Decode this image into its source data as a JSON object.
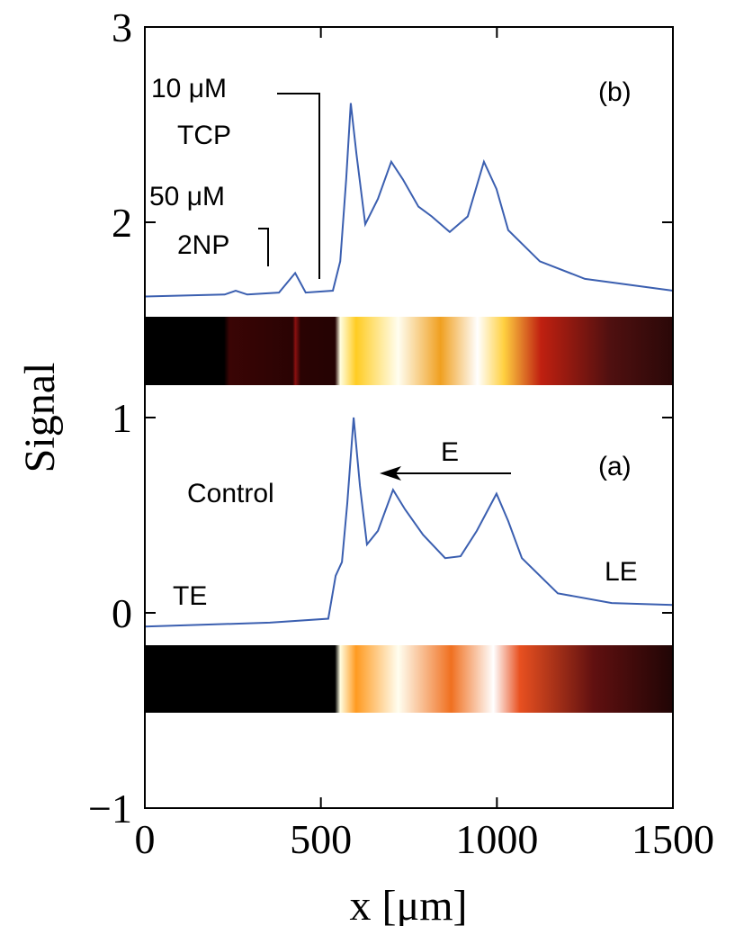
{
  "chart_data": {
    "type": "line",
    "x_label": "x [μm]",
    "y_label": "Signal",
    "xlim": [
      0,
      1500
    ],
    "ylim": [
      -1,
      3
    ],
    "xticks": [
      0,
      500,
      1000,
      1500
    ],
    "yticks": [
      {
        "value": -1,
        "label": "−1"
      },
      0,
      1,
      2,
      3
    ],
    "annotations": {
      "b_conc1": "10 μM",
      "b_name1": "TCP",
      "b_conc2": "50 μM",
      "b_name2": "2NP",
      "b_panel": "(b)",
      "a_panel": "(a)",
      "a_field": "E",
      "a_label": "Control",
      "a_te": "TE",
      "a_le": "LE"
    },
    "series": [
      {
        "name": "(b)",
        "color": "#3b5fb0",
        "x": [
          0,
          227,
          258,
          291,
          381,
          427,
          457,
          534,
          555,
          572,
          585,
          601,
          626,
          662,
          700,
          733,
          777,
          815,
          866,
          917,
          963,
          999,
          1032,
          1122,
          1250,
          1500
        ],
        "values": [
          1.62,
          1.63,
          1.65,
          1.63,
          1.64,
          1.74,
          1.64,
          1.65,
          1.8,
          2.22,
          2.61,
          2.35,
          1.99,
          2.12,
          2.31,
          2.22,
          2.08,
          2.03,
          1.95,
          2.03,
          2.31,
          2.17,
          1.96,
          1.8,
          1.71,
          1.65
        ]
      },
      {
        "name": "(a)",
        "color": "#3b5fb0",
        "x": [
          0,
          355,
          521,
          542,
          560,
          575,
          593,
          611,
          631,
          662,
          705,
          739,
          790,
          853,
          897,
          943,
          999,
          1032,
          1071,
          1173,
          1326,
          1500
        ],
        "values": [
          -0.07,
          -0.05,
          -0.03,
          0.19,
          0.26,
          0.56,
          1.0,
          0.65,
          0.35,
          0.42,
          0.63,
          0.53,
          0.4,
          0.28,
          0.29,
          0.42,
          0.61,
          0.47,
          0.28,
          0.1,
          0.05,
          0.04
        ]
      }
    ]
  }
}
